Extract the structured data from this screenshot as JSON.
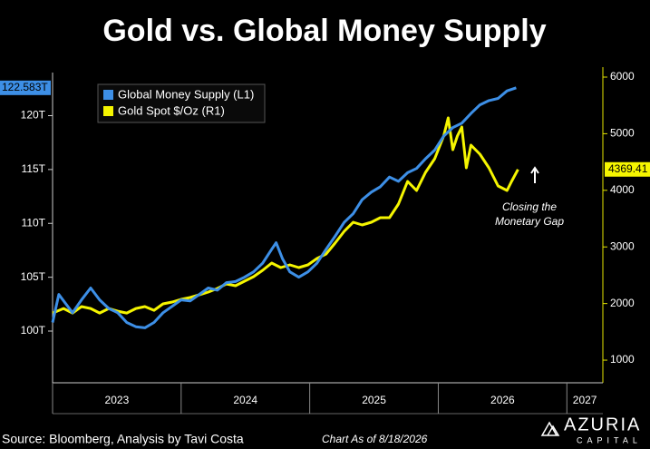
{
  "chart_data": {
    "type": "line",
    "title": "Gold vs. Global Money Supply",
    "source": "Source: Bloomberg, Analysis by Tavi Costa",
    "date_note": "Chart As of 8/18/2026",
    "logo": {
      "name": "AZURIA",
      "tagline": "CAPITAL"
    },
    "annotation": [
      "Closing the",
      "Monetary Gap"
    ],
    "legend": "upper left",
    "xlim": [
      2023,
      2027.28
    ],
    "xticks": [
      2023,
      2024,
      2025,
      2026,
      2027
    ],
    "ylim": [
      95.2,
      124
    ],
    "yticks": [
      {
        "value": 100,
        "label": "100T"
      },
      {
        "value": 105,
        "label": "105T"
      },
      {
        "value": 110,
        "label": "110T"
      },
      {
        "value": 115,
        "label": "115T"
      },
      {
        "value": 120,
        "label": "120T"
      }
    ],
    "y2lim": [
      600,
      6080
    ],
    "y2ticks": [
      1000,
      2000,
      3000,
      4000,
      5000,
      6000
    ],
    "series": [
      {
        "name": "Global Money Supply (L1)",
        "color": "#3d8fe6",
        "axis": "y",
        "last_label": "122.583T",
        "x": [
          2023.0,
          2023.049,
          2023.099,
          2023.155,
          2023.225,
          2023.296,
          2023.366,
          2023.437,
          2023.507,
          2023.577,
          2023.648,
          2023.718,
          2023.789,
          2023.859,
          2023.93,
          2024.0,
          2024.07,
          2024.141,
          2024.211,
          2024.282,
          2024.352,
          2024.423,
          2024.493,
          2024.563,
          2024.634,
          2024.704,
          2024.739,
          2024.789,
          2024.845,
          2024.915,
          2024.986,
          2025.056,
          2025.127,
          2025.197,
          2025.268,
          2025.338,
          2025.408,
          2025.479,
          2025.549,
          2025.62,
          2025.69,
          2025.761,
          2025.831,
          2025.901,
          2025.972,
          2026.042,
          2026.113,
          2026.183,
          2026.254,
          2026.324,
          2026.394,
          2026.465,
          2026.535,
          2026.606
        ],
        "values": [
          100.8,
          103.4,
          102.6,
          101.7,
          102.9,
          104.0,
          102.9,
          102.1,
          101.7,
          100.8,
          100.4,
          100.3,
          100.8,
          101.7,
          102.3,
          102.9,
          102.8,
          103.4,
          104.0,
          103.8,
          104.5,
          104.6,
          105.0,
          105.5,
          106.3,
          107.6,
          108.2,
          106.7,
          105.5,
          105.0,
          105.5,
          106.3,
          107.6,
          108.8,
          110.1,
          110.9,
          112.2,
          112.9,
          113.4,
          114.3,
          113.9,
          114.7,
          115.1,
          116.0,
          116.8,
          118.1,
          118.9,
          119.3,
          120.2,
          121.0,
          121.4,
          121.6,
          122.3,
          122.583
        ]
      },
      {
        "name": "Gold Spot $/Oz (R1)",
        "color": "#f5f500",
        "axis": "y2",
        "last_label": "4369.41",
        "x": [
          2023.0,
          2023.085,
          2023.155,
          2023.225,
          2023.296,
          2023.366,
          2023.437,
          2023.507,
          2023.577,
          2023.648,
          2023.718,
          2023.789,
          2023.859,
          2023.93,
          2024.0,
          2024.07,
          2024.141,
          2024.211,
          2024.282,
          2024.352,
          2024.423,
          2024.493,
          2024.563,
          2024.634,
          2024.704,
          2024.775,
          2024.845,
          2024.915,
          2024.986,
          2025.056,
          2025.127,
          2025.197,
          2025.268,
          2025.338,
          2025.408,
          2025.479,
          2025.549,
          2025.62,
          2025.69,
          2025.761,
          2025.831,
          2025.901,
          2025.972,
          2026.042,
          2026.077,
          2026.113,
          2026.148,
          2026.183,
          2026.218,
          2026.254,
          2026.324,
          2026.394,
          2026.465,
          2026.535,
          2026.57,
          2026.62
        ],
        "values": [
          1833,
          1913,
          1833,
          1946,
          1913,
          1833,
          1913,
          1865,
          1833,
          1913,
          1946,
          1881,
          1994,
          2026,
          2074,
          2106,
          2154,
          2202,
          2266,
          2346,
          2314,
          2394,
          2474,
          2587,
          2715,
          2635,
          2683,
          2635,
          2683,
          2795,
          2875,
          3067,
          3276,
          3436,
          3388,
          3436,
          3516,
          3516,
          3756,
          4157,
          3997,
          4317,
          4558,
          4958,
          5279,
          4718,
          4958,
          5119,
          4397,
          4798,
          4638,
          4397,
          4077,
          3997,
          4157,
          4369.41
        ]
      }
    ]
  }
}
